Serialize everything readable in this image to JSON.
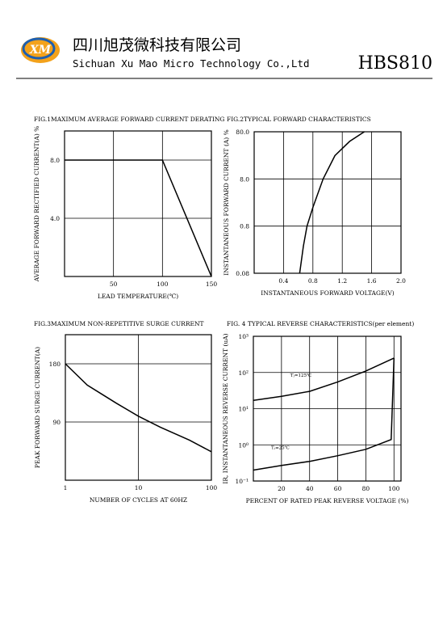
{
  "header": {
    "logo": "XM",
    "company_cn": "四川旭茂微科技有限公司",
    "company_en": "Sichuan Xu Mao Micro Technology Co.,Ltd",
    "part": "HBS810"
  },
  "chart_data": [
    {
      "type": "line",
      "title": "FIG.1MAXIMUM AVERAGE FORWARD CURRENT DERATING",
      "xlabel": "LEAD TEMPERATURE(℃)",
      "ylabel": "AVERAGE FORWARD RECTIFIED CURRENT(A) %",
      "xlim": [
        0,
        150
      ],
      "ylim": [
        0,
        10
      ],
      "xticks": [
        50,
        100,
        150
      ],
      "yticks": [
        {
          "value": 4,
          "label": "4.0"
        },
        {
          "value": 8,
          "label": "8.0"
        }
      ],
      "grid": true,
      "series": [
        {
          "color": "#000000",
          "x": [
            0,
            100,
            150
          ],
          "values": [
            8,
            8,
            0
          ]
        }
      ]
    },
    {
      "type": "line",
      "title": "FIG.2TYPICAL FORWARD CHARACTERISTICS",
      "xlabel": "INSTANTANEOUS FORWARD VOLTAGE(V)",
      "ylabel": "INSTANTANEOUS FORWARD CURRENT (A) %",
      "xlim": [
        0,
        2
      ],
      "ylim": [
        0.08,
        80
      ],
      "ylog": true,
      "xticks": [
        0.4,
        0.8,
        1.2,
        1.6,
        {
          "value": 2,
          "label": "2.0"
        }
      ],
      "yticks": [
        0.08,
        0.8,
        {
          "value": 8,
          "label": "8.0"
        },
        {
          "value": 80,
          "label": "80.0"
        }
      ],
      "grid": true,
      "series": [
        {
          "color": "#000000",
          "x": [
            0.62,
            0.67,
            0.72,
            0.8,
            0.94,
            1.1,
            1.3,
            1.5
          ],
          "values": [
            0.08,
            0.3,
            0.8,
            2,
            8,
            25,
            50,
            80
          ]
        }
      ]
    },
    {
      "type": "line",
      "title": "FIG.3MAXIMUM NON-REPETITIVE SURGE CURRENT",
      "xlabel": "NUMBER OF CYCLES AT 60HZ",
      "ylabel": "PEAK FORWARD SURGE CURRENT(A)",
      "xlim": [
        1,
        100
      ],
      "xlog": true,
      "ylim": [
        0,
        225
      ],
      "xticks": [
        1,
        10,
        100
      ],
      "yticks": [
        90,
        180
      ],
      "grid": true,
      "series": [
        {
          "color": "#000000",
          "x": [
            1,
            2,
            5,
            10,
            20,
            50,
            100
          ],
          "values": [
            180,
            147,
            119,
            99,
            82,
            62,
            44
          ]
        }
      ]
    },
    {
      "type": "line",
      "title": "FIG. 4 TYPICAL REVERSE CHARACTERISTICS(per element)",
      "xlabel": "PERCENT OF RATED PEAK REVERSE VOLTAGE (%)",
      "ylabel": "IR, INSTANTANEOUS REVERSE CURRENT (uA)",
      "xlim": [
        0,
        105
      ],
      "ylim": [
        0.1,
        1000
      ],
      "ylog": true,
      "xticks": [
        20,
        40,
        60,
        80,
        100
      ],
      "yticks": [
        {
          "value": 0.1,
          "label": "10⁻¹"
        },
        {
          "value": 1,
          "label": "10⁰"
        },
        {
          "value": 10,
          "label": "10¹"
        },
        {
          "value": 100,
          "label": "10²"
        },
        {
          "value": 1000,
          "label": "10³"
        }
      ],
      "grid": true,
      "series": [
        {
          "name": "Tⱼ=125℃",
          "color": "#000000",
          "x": [
            0,
            20,
            40,
            60,
            80,
            100
          ],
          "values": [
            17,
            22,
            30,
            55,
            110,
            250
          ]
        },
        {
          "name": "Tⱼ=25℃",
          "color": "#000000",
          "x": [
            0,
            20,
            40,
            60,
            80,
            98,
            100
          ],
          "values": [
            0.2,
            0.27,
            0.35,
            0.5,
            0.75,
            1.4,
            250
          ]
        }
      ]
    }
  ]
}
